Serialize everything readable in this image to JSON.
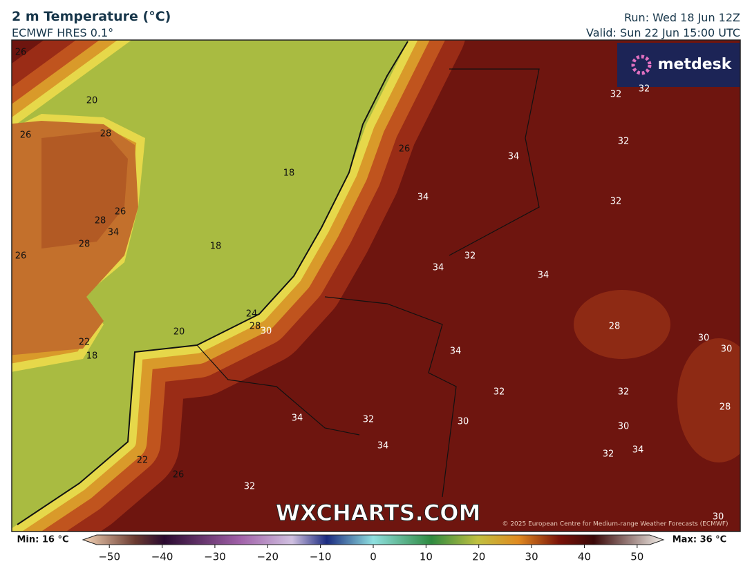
{
  "header": {
    "title": "2 m Temperature (°C)",
    "model": "ECMWF HRES 0.1°",
    "run": "Run: Wed 18 Jun 12Z",
    "valid": "Valid: Sun 22 Jun 15:00 UTC"
  },
  "logo": "metdesk",
  "watermark": "WXCHARTS.COM",
  "copyright": "© 2025 European Centre for Medium-range Weather Forecasts (ECMWF)",
  "contour_labels": [
    "26",
    "20",
    "26",
    "28",
    "18",
    "26",
    "34",
    "32",
    "32",
    "32",
    "34",
    "32",
    "28",
    "26",
    "34",
    "28",
    "18",
    "26",
    "34",
    "32",
    "34",
    "24",
    "28",
    "30",
    "20",
    "22",
    "18",
    "28",
    "30",
    "30",
    "34",
    "32",
    "32",
    "28",
    "34",
    "32",
    "30",
    "30",
    "34",
    "32",
    "34",
    "22",
    "26",
    "32",
    "30"
  ],
  "colorbar": {
    "min_label": "Min: 16 °C",
    "max_label": "Max: 36 °C",
    "lim": [
      -55,
      55
    ],
    "ticks": [
      {
        "value": -50,
        "label": "−50"
      },
      {
        "value": -40,
        "label": "−40"
      },
      {
        "value": -30,
        "label": "−30"
      },
      {
        "value": -20,
        "label": "−20"
      },
      {
        "value": -10,
        "label": "−10"
      },
      0,
      10,
      20,
      30,
      40,
      50
    ]
  }
}
